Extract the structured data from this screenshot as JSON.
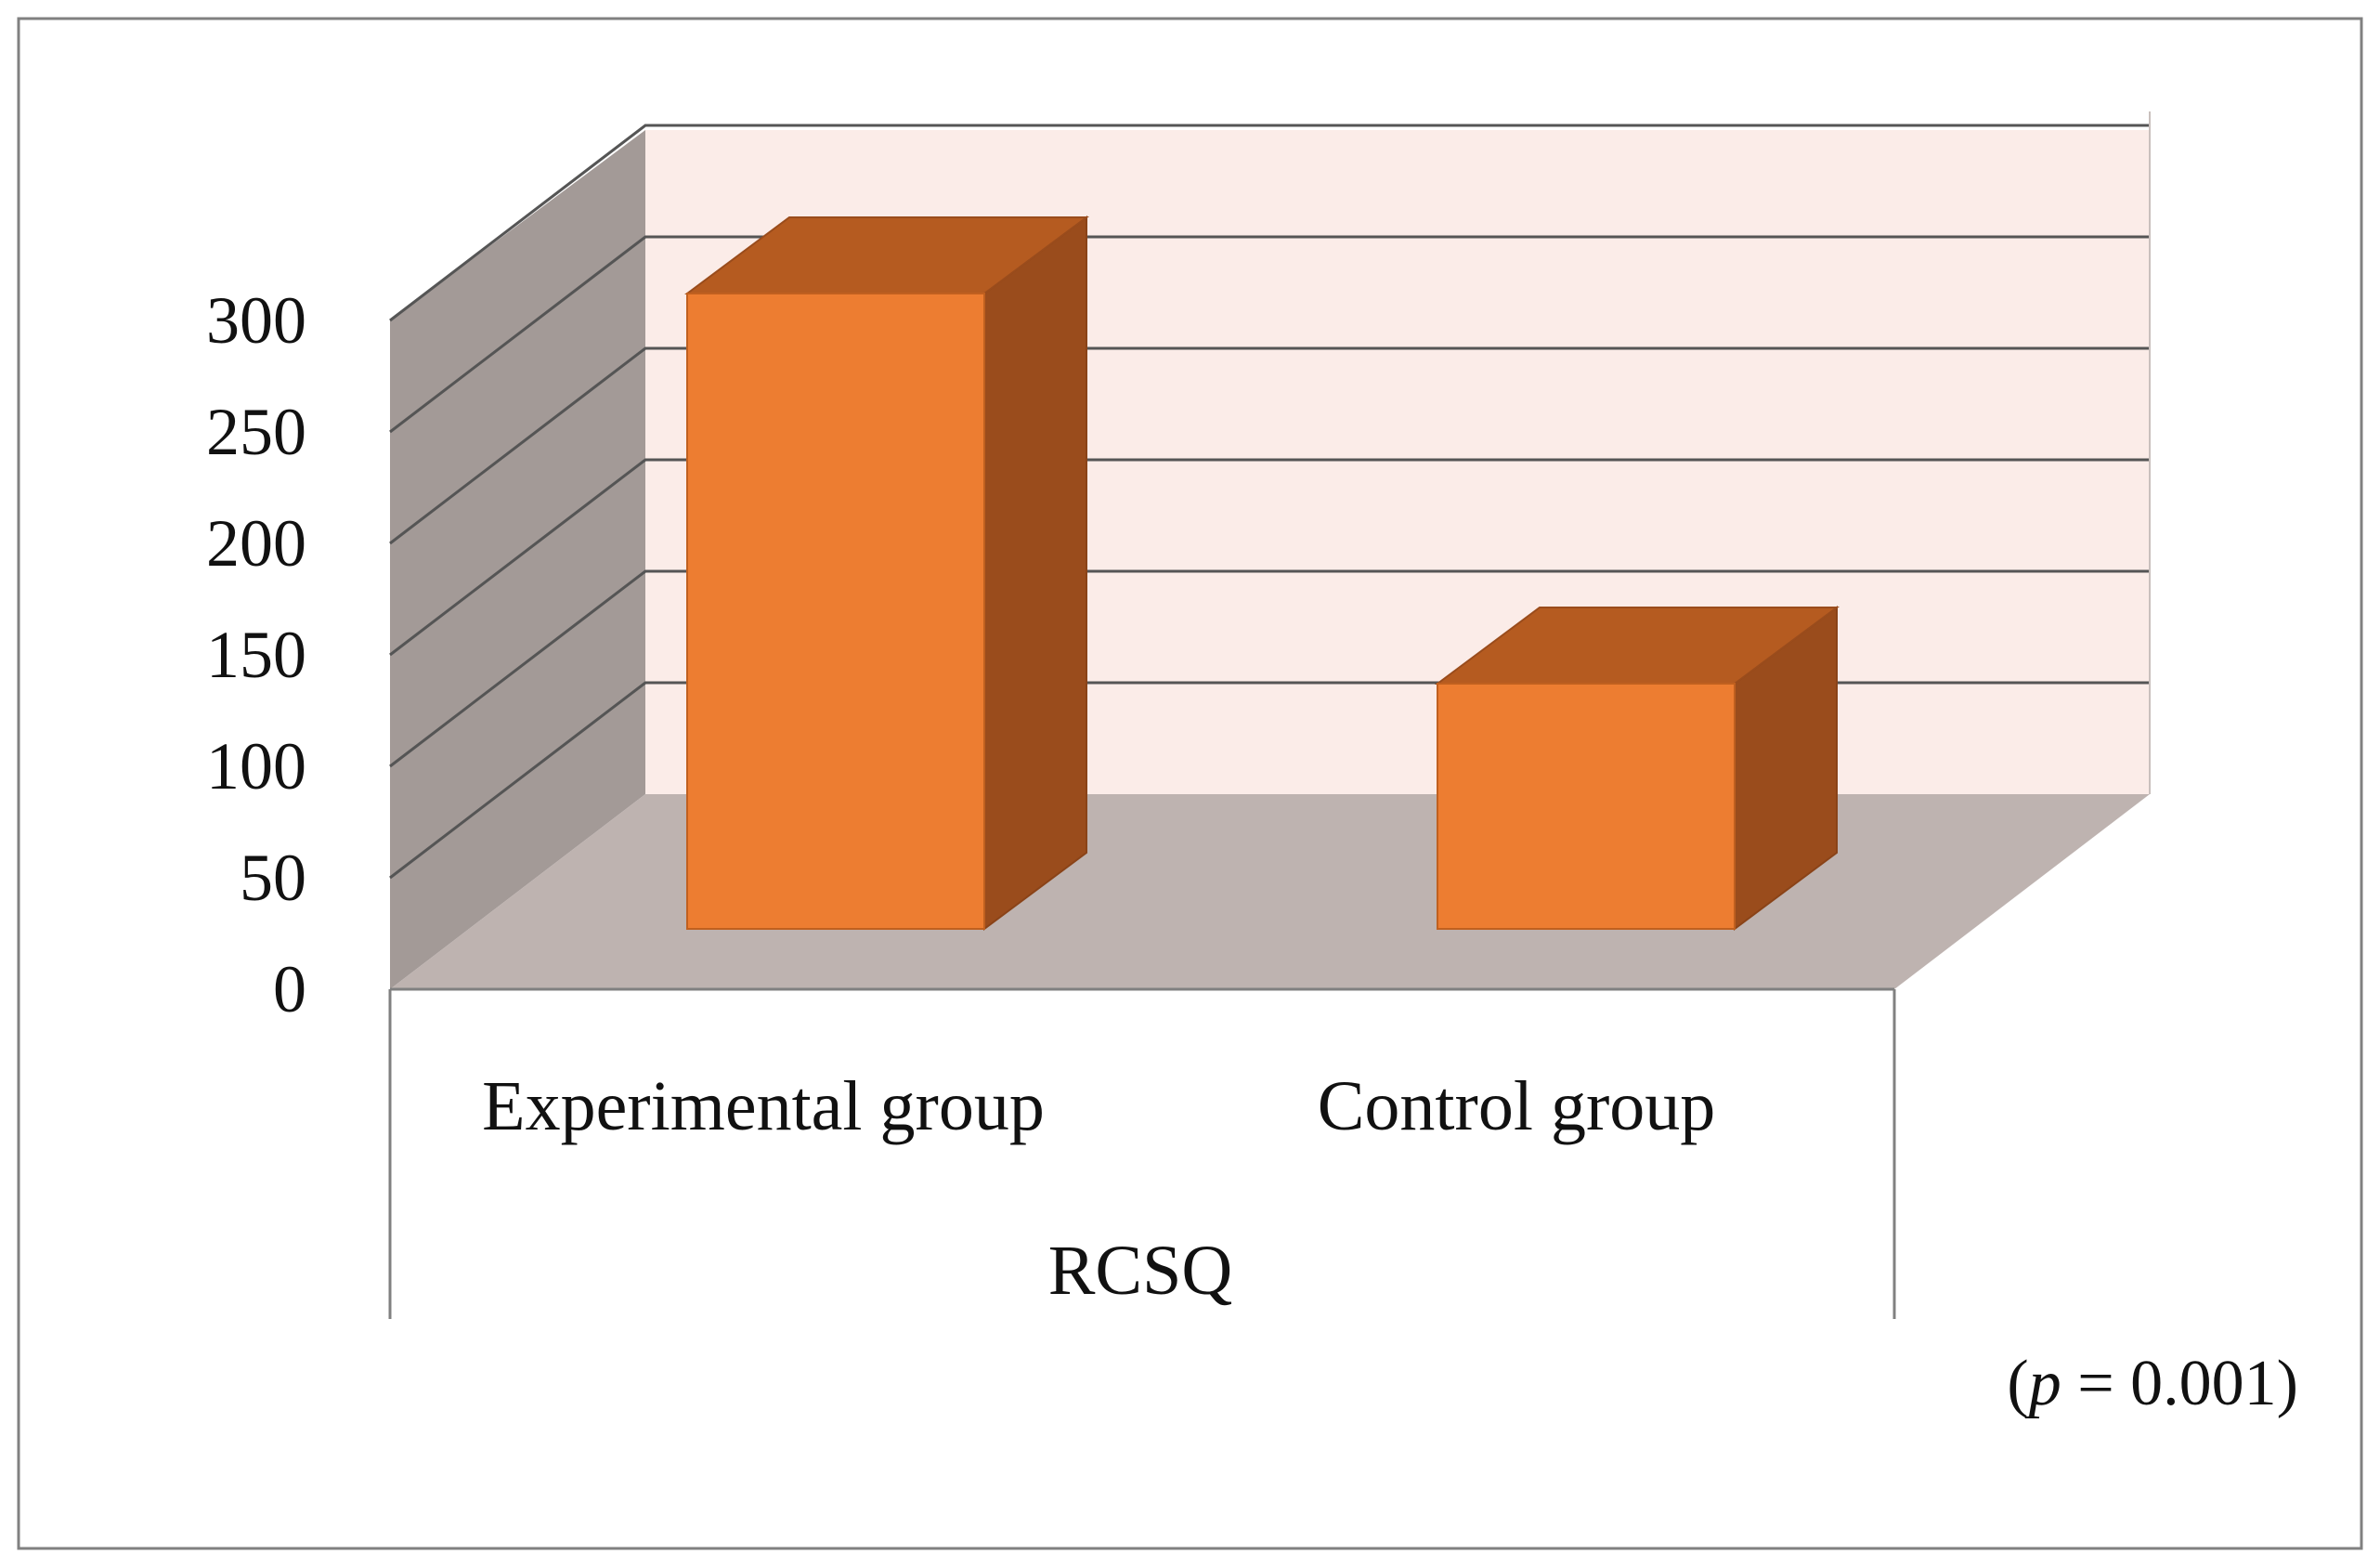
{
  "chart_data": {
    "type": "bar",
    "style": "3d-column",
    "title": "",
    "xlabel": "",
    "ylabel": "",
    "group_label": "RCSQ",
    "categories": [
      "Experimental group",
      "Control group"
    ],
    "values": [
      285,
      110
    ],
    "y_ticks": [
      "0",
      "50",
      "100",
      "150",
      "200",
      "250",
      "300"
    ],
    "ylim": [
      0,
      300
    ],
    "grid": true,
    "annotation": {
      "open": "(",
      "symbol": "p",
      "text": " = 0.001)"
    },
    "colors": {
      "bar_front": "#ED7D31",
      "bar_top": "#B55B20",
      "bar_side": "#9A4C1C",
      "back_wall": "#FBECE8",
      "side_wall": "#A39A97",
      "floor": "#BEB3B0",
      "gridline": "#555555"
    }
  }
}
